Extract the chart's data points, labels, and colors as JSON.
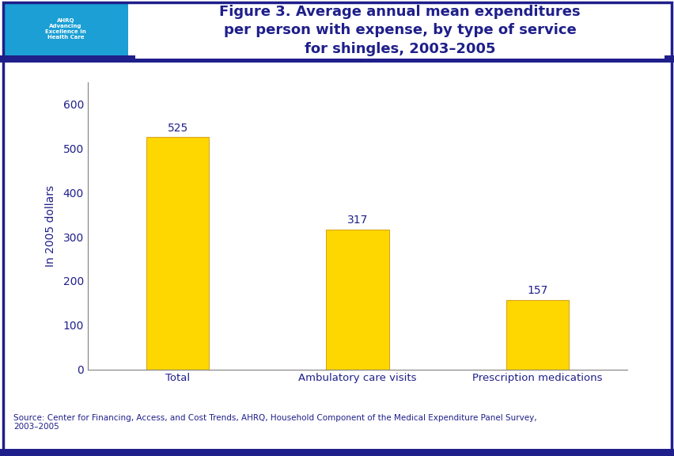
{
  "categories": [
    "Total",
    "Ambulatory care visits",
    "Prescription medications"
  ],
  "values": [
    525,
    317,
    157
  ],
  "bar_color": "#FFD700",
  "bar_edgecolor": "#DAA520",
  "title_line1": "Figure 3. Average annual mean expenditures",
  "title_line2": "per person with expense, by type of service",
  "title_line3": "for shingles, 2003–2005",
  "title_color": "#1F1F8B",
  "ylabel": "In 2005 dollars",
  "ylabel_color": "#1F1F8B",
  "ytick_color": "#1F1F8B",
  "xtick_color": "#1F1F8B",
  "ylim": [
    0,
    650
  ],
  "yticks": [
    0,
    100,
    200,
    300,
    400,
    500,
    600
  ],
  "value_label_color": "#1F1F8B",
  "background_color": "#FFFFFF",
  "border_color": "#1F1F8B",
  "top_bar_color": "#1F1F8B",
  "source_text": "Source: Center for Financing, Access, and Cost Trends, AHRQ, Household Component of the Medical Expenditure Panel Survey,\n2003–2005",
  "source_color": "#1F1F8B",
  "axis_color": "#808080"
}
